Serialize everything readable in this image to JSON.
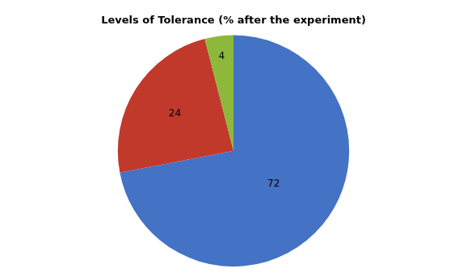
{
  "chart_data": {
    "type": "pie",
    "title": "Levels of Tolerance (% after the experiment)",
    "values": [
      72,
      24,
      4
    ],
    "colors": [
      "#4472C4",
      "#C0392B",
      "#8DB83B"
    ],
    "data_labels": true,
    "legend": false
  }
}
